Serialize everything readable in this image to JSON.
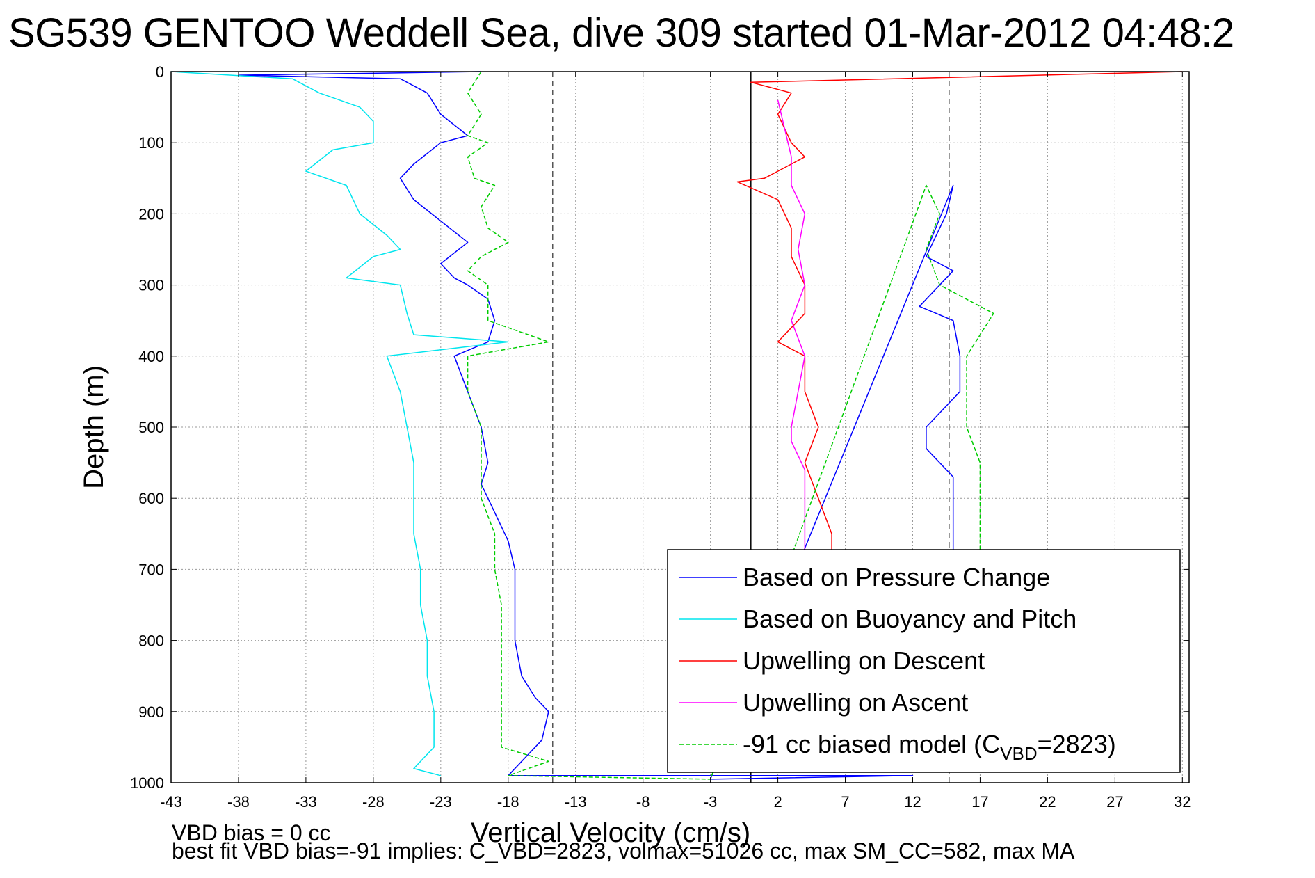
{
  "title": "SG539 GENTOO Weddell Sea, dive 309 started 01-Mar-2012 04:48:2",
  "footer": {
    "line1": "VBD bias = 0 cc",
    "line2": "best fit VBD bias=-91 implies: C_VBD=2823, volmax=51026 cc, max SM_CC=582, max MA"
  },
  "chart_data": {
    "type": "line",
    "xlabel": "Vertical Velocity (cm/s)",
    "ylabel": "Depth (m)",
    "xlim": [
      -43,
      32.5
    ],
    "ylim": [
      1000,
      0
    ],
    "xticks": [
      -43,
      -38,
      -33,
      -28,
      -23,
      -18,
      -13,
      -8,
      -3,
      2,
      7,
      12,
      17,
      22,
      27,
      32
    ],
    "yticks": [
      0,
      100,
      200,
      300,
      400,
      500,
      600,
      700,
      800,
      900,
      1000
    ],
    "grid": true,
    "legend_position": "bottom-right",
    "reference_lines": [
      {
        "x": -14.7,
        "style": "dashed",
        "color": "#555555"
      },
      {
        "x": 0,
        "style": "solid",
        "color": "#000000"
      },
      {
        "x": 14.7,
        "style": "dashed",
        "color": "#555555"
      }
    ],
    "series": [
      {
        "name": "Based on Pressure Change",
        "color": "#0000ff",
        "style": "solid",
        "points": [
          [
            -20,
            0
          ],
          [
            -38,
            5
          ],
          [
            -26,
            10
          ],
          [
            -24,
            30
          ],
          [
            -23,
            60
          ],
          [
            -21,
            90
          ],
          [
            -23,
            100
          ],
          [
            -25,
            130
          ],
          [
            -26,
            150
          ],
          [
            -25,
            180
          ],
          [
            -23,
            210
          ],
          [
            -21,
            240
          ],
          [
            -23,
            270
          ],
          [
            -22,
            290
          ],
          [
            -21,
            300
          ],
          [
            -19.5,
            320
          ],
          [
            -19,
            350
          ],
          [
            -19.5,
            380
          ],
          [
            -22,
            400
          ],
          [
            -21,
            450
          ],
          [
            -20,
            500
          ],
          [
            -19.5,
            550
          ],
          [
            -20,
            580
          ],
          [
            -19,
            620
          ],
          [
            -18,
            660
          ],
          [
            -17.5,
            700
          ],
          [
            -17.5,
            750
          ],
          [
            -17.5,
            800
          ],
          [
            -17,
            850
          ],
          [
            -16,
            880
          ],
          [
            -15,
            900
          ],
          [
            -15.5,
            940
          ],
          [
            -17,
            970
          ],
          [
            -18,
            990
          ],
          [
            12,
            990
          ],
          [
            -3,
            995
          ],
          [
            15,
            160
          ],
          [
            14.5,
            200
          ],
          [
            13,
            260
          ],
          [
            15,
            280
          ],
          [
            12.5,
            330
          ],
          [
            15,
            350
          ],
          [
            15.5,
            400
          ],
          [
            15.5,
            450
          ],
          [
            13,
            500
          ],
          [
            13,
            530
          ],
          [
            15,
            570
          ],
          [
            15,
            620
          ],
          [
            15,
            660
          ],
          [
            15,
            680
          ]
        ]
      },
      {
        "name": "Based on Buoyancy and Pitch",
        "color": "#00e5ee",
        "style": "solid",
        "points": [
          [
            -43,
            0
          ],
          [
            -34,
            10
          ],
          [
            -32,
            30
          ],
          [
            -29,
            50
          ],
          [
            -28,
            70
          ],
          [
            -28,
            100
          ],
          [
            -31,
            110
          ],
          [
            -33,
            140
          ],
          [
            -30,
            160
          ],
          [
            -29,
            200
          ],
          [
            -27,
            230
          ],
          [
            -26,
            250
          ],
          [
            -28,
            260
          ],
          [
            -30,
            290
          ],
          [
            -26,
            300
          ],
          [
            -25.5,
            340
          ],
          [
            -25,
            370
          ],
          [
            -18,
            380
          ],
          [
            -27,
            400
          ],
          [
            -26,
            450
          ],
          [
            -25.5,
            500
          ],
          [
            -25,
            550
          ],
          [
            -25,
            600
          ],
          [
            -25,
            650
          ],
          [
            -24.5,
            700
          ],
          [
            -24.5,
            750
          ],
          [
            -24,
            800
          ],
          [
            -24,
            850
          ],
          [
            -23.5,
            900
          ],
          [
            -23.5,
            950
          ],
          [
            -25,
            980
          ],
          [
            -23,
            990
          ]
        ]
      },
      {
        "name": "Upwelling on Descent",
        "color": "#ff0000",
        "style": "solid",
        "points": [
          [
            32,
            0
          ],
          [
            0,
            15
          ],
          [
            3,
            30
          ],
          [
            2,
            60
          ],
          [
            3,
            100
          ],
          [
            4,
            120
          ],
          [
            1,
            150
          ],
          [
            -1,
            155
          ],
          [
            2,
            180
          ],
          [
            3,
            220
          ],
          [
            3,
            260
          ],
          [
            4,
            300
          ],
          [
            4,
            340
          ],
          [
            2,
            380
          ],
          [
            4,
            400
          ],
          [
            4,
            450
          ],
          [
            5,
            500
          ],
          [
            4,
            550
          ],
          [
            5,
            600
          ],
          [
            6,
            650
          ],
          [
            6,
            680
          ]
        ]
      },
      {
        "name": "Upwelling on Ascent",
        "color": "#ff00ff",
        "style": "solid",
        "points": [
          [
            2,
            40
          ],
          [
            2.5,
            80
          ],
          [
            3,
            120
          ],
          [
            3,
            160
          ],
          [
            4,
            200
          ],
          [
            3.5,
            250
          ],
          [
            4,
            300
          ],
          [
            3,
            350
          ],
          [
            4,
            400
          ],
          [
            3.5,
            450
          ],
          [
            3,
            500
          ],
          [
            3,
            520
          ],
          [
            4,
            560
          ],
          [
            4,
            600
          ],
          [
            4,
            640
          ],
          [
            4,
            680
          ]
        ]
      },
      {
        "name": "-91 cc biased model (C_VBD=2823)",
        "color": "#00cc00",
        "style": "dashed",
        "points": [
          [
            -20,
            0
          ],
          [
            -21,
            30
          ],
          [
            -20,
            60
          ],
          [
            -21,
            90
          ],
          [
            -19.5,
            100
          ],
          [
            -21,
            120
          ],
          [
            -20.5,
            150
          ],
          [
            -19,
            160
          ],
          [
            -20,
            190
          ],
          [
            -19.5,
            220
          ],
          [
            -18,
            240
          ],
          [
            -20,
            260
          ],
          [
            -21,
            280
          ],
          [
            -19.5,
            300
          ],
          [
            -19.5,
            350
          ],
          [
            -15,
            380
          ],
          [
            -21,
            400
          ],
          [
            -21,
            450
          ],
          [
            -20,
            500
          ],
          [
            -20,
            550
          ],
          [
            -20,
            600
          ],
          [
            -19,
            650
          ],
          [
            -19,
            700
          ],
          [
            -18.5,
            750
          ],
          [
            -18.5,
            800
          ],
          [
            -18.5,
            850
          ],
          [
            -18.5,
            900
          ],
          [
            -18.5,
            950
          ],
          [
            -15,
            970
          ],
          [
            -18,
            990
          ],
          [
            -3,
            995
          ],
          [
            13,
            160
          ],
          [
            14,
            200
          ],
          [
            13,
            250
          ],
          [
            14,
            300
          ],
          [
            18,
            340
          ],
          [
            16,
            400
          ],
          [
            16,
            450
          ],
          [
            16,
            500
          ],
          [
            17,
            550
          ],
          [
            17,
            600
          ],
          [
            17,
            650
          ],
          [
            17,
            680
          ]
        ]
      }
    ],
    "legend_items": [
      {
        "label": "Based on Pressure Change",
        "color": "#0000ff",
        "style": "solid"
      },
      {
        "label": "Based on Buoyancy and Pitch",
        "color": "#00e5ee",
        "style": "solid"
      },
      {
        "label": "Upwelling on Descent",
        "color": "#ff0000",
        "style": "solid"
      },
      {
        "label": "Upwelling on Ascent",
        "color": "#ff00ff",
        "style": "solid"
      },
      {
        "label": "-91 cc biased model (C",
        "label_sub": "VBD",
        "label_tail": "=2823)",
        "color": "#00cc00",
        "style": "dashed"
      }
    ]
  }
}
